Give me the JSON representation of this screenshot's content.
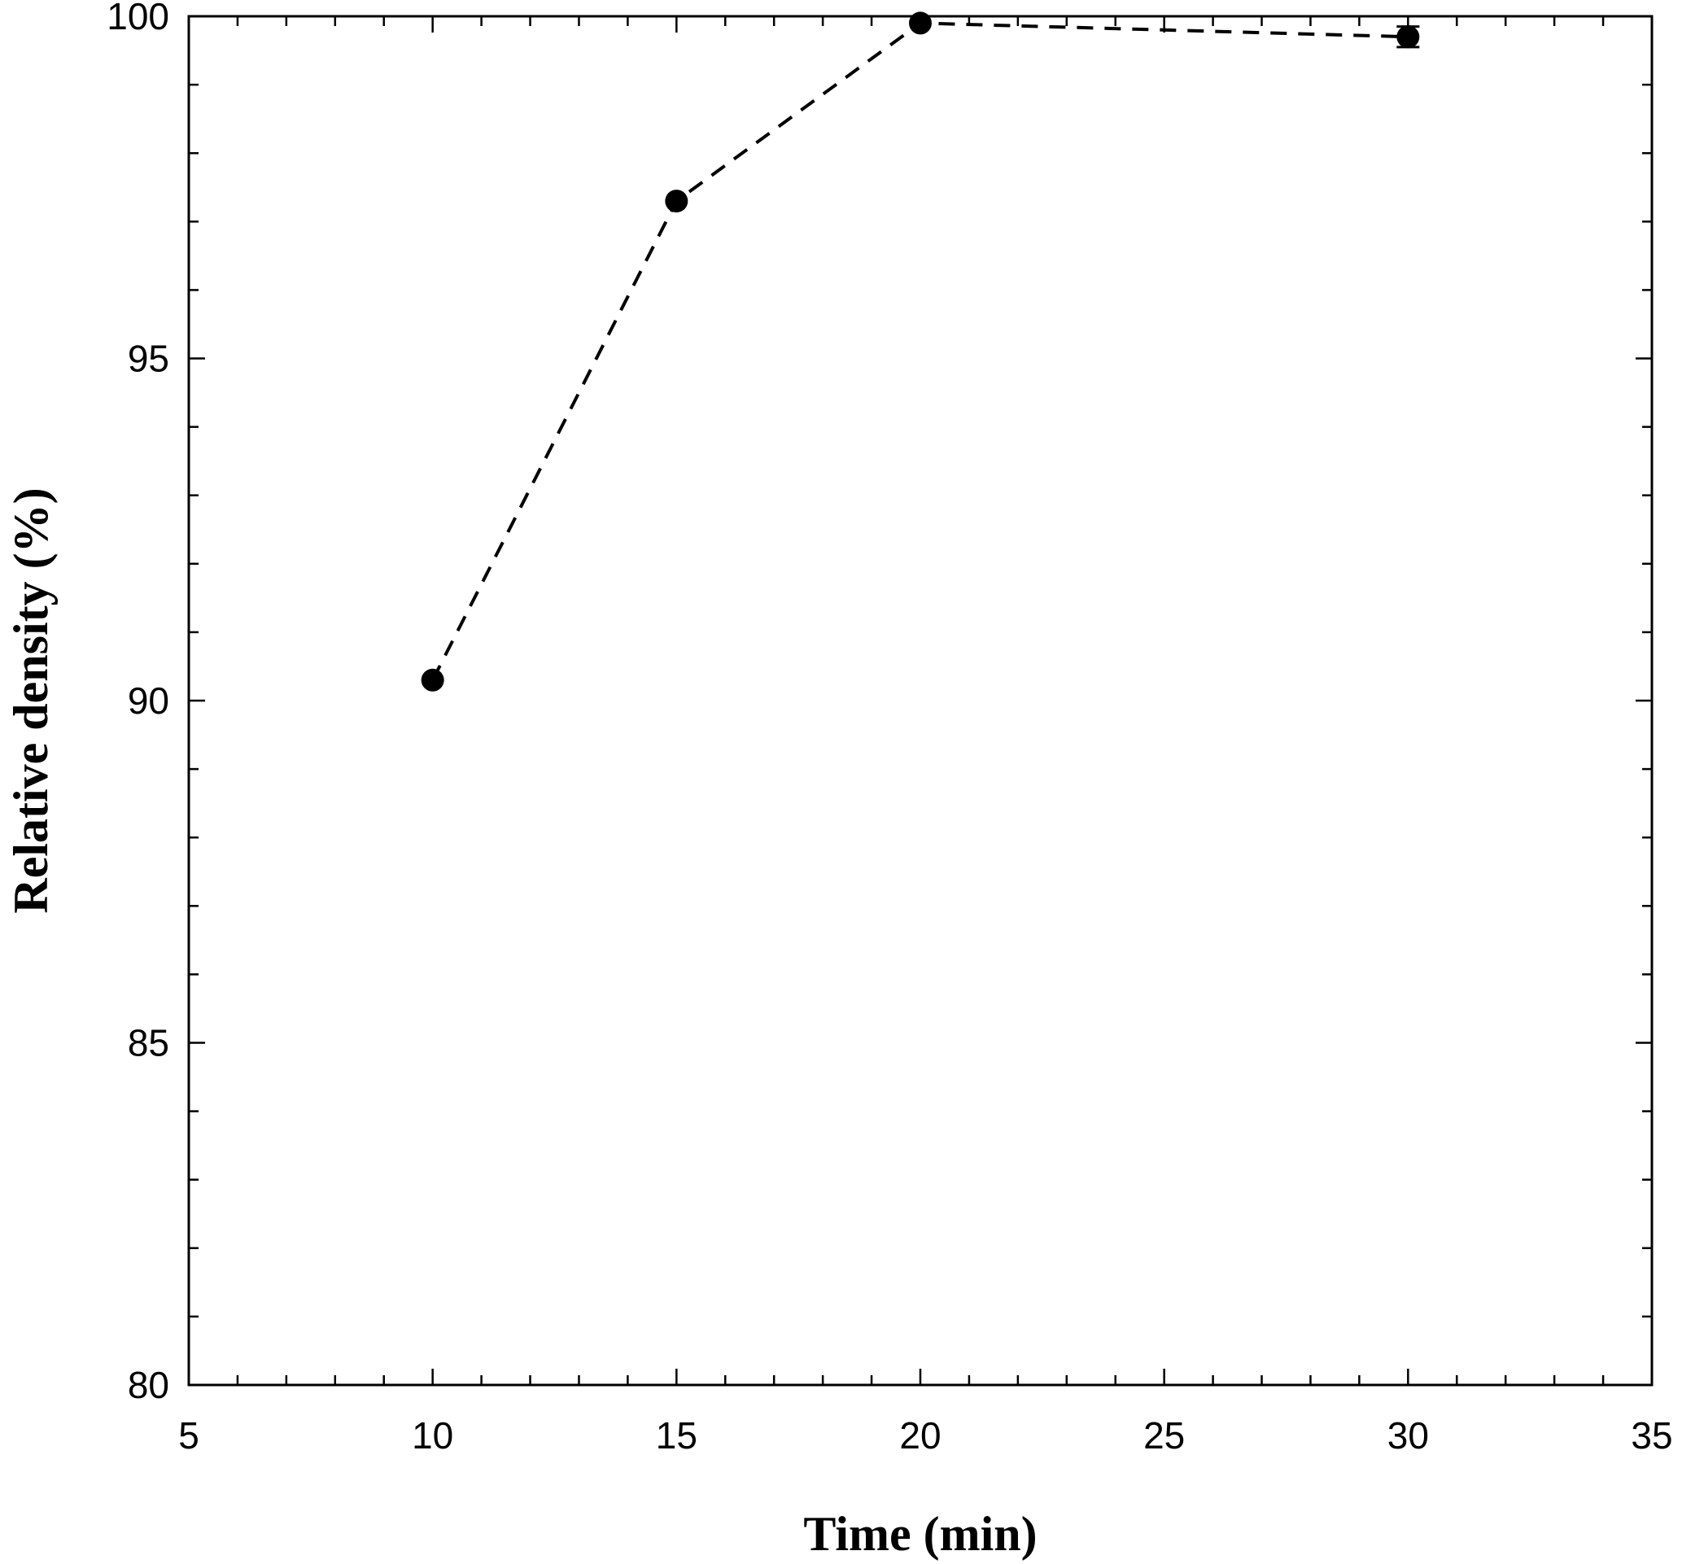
{
  "chart_data": {
    "type": "line",
    "title": "",
    "xlabel": "Time (min)",
    "ylabel": "Relative density (%)",
    "xlim": [
      5,
      35
    ],
    "ylim": [
      80,
      100
    ],
    "x_ticks": [
      "5",
      "10",
      "15",
      "20",
      "25",
      "30",
      "35"
    ],
    "y_ticks": [
      "80",
      "85",
      "90",
      "95",
      "100"
    ],
    "x_minor_step": 1,
    "y_minor_step": 1,
    "grid": false,
    "legend": "none",
    "series": [
      {
        "x": [
          10,
          15,
          20,
          30
        ],
        "y": [
          90.3,
          97.3,
          99.9,
          99.7
        ],
        "y_error": [
          0,
          0,
          0,
          0.15
        ],
        "marker": "filled-circle",
        "line_style": "dashed",
        "color": "#000000"
      }
    ]
  }
}
